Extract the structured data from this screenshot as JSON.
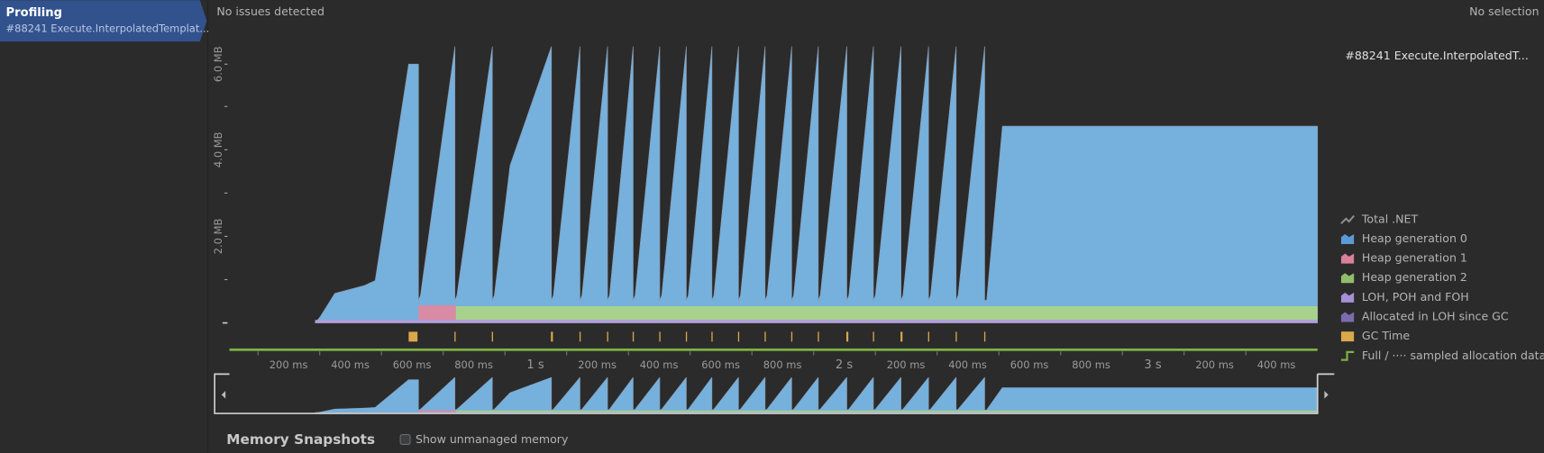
{
  "sidebar": {
    "title": "Profiling",
    "subtitle": "#88241 Execute.InterpolatedTemplat..."
  },
  "status": {
    "issues": "No issues detected",
    "selection": "No selection"
  },
  "memory_chart": {
    "y_axis_labels": [
      "6.0 MB",
      "4.0 MB",
      "2.0 MB"
    ],
    "time_labels": [
      "200 ms",
      "400 ms",
      "600 ms",
      "800 ms",
      "1 s",
      "200 ms",
      "400 ms",
      "600 ms",
      "800 ms",
      "2 s",
      "200 ms",
      "400 ms",
      "600 ms",
      "800 ms",
      "3 s",
      "200 ms",
      "400 ms"
    ]
  },
  "details": {
    "title": "#88241 Execute.InterpolatedT...",
    "legend": [
      {
        "label": "Total .NET",
        "color": "#8c8f94"
      },
      {
        "label": "Heap generation 0",
        "color": "#5b9bd5"
      },
      {
        "label": "Heap generation 1",
        "color": "#d9809b"
      },
      {
        "label": "Heap generation 2",
        "color": "#8fbf6a"
      },
      {
        "label": "LOH, POH and FOH",
        "color": "#a58fd6"
      },
      {
        "label": "Allocated in LOH since GC",
        "color": "#7d6bb0"
      },
      {
        "label": "GC Time",
        "color": "#d9a84a"
      },
      {
        "label": "Full / ···· sampled allocation data",
        "color": "#7cb342"
      }
    ]
  },
  "snapshots": {
    "title": "Memory Snapshots",
    "checkbox_label": "Show unmanaged memory"
  }
}
